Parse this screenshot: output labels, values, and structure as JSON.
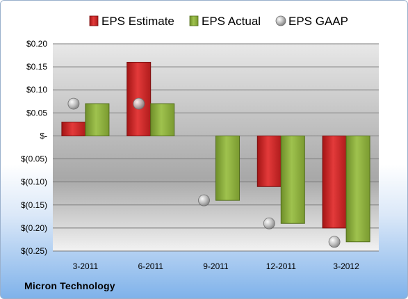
{
  "company_label": "Micron Technology",
  "chart_data": {
    "type": "bar",
    "categories": [
      "3-2011",
      "6-2011",
      "9-2011",
      "12-2011",
      "3-2012"
    ],
    "series": [
      {
        "name": "EPS Estimate",
        "kind": "bar",
        "color": "#d42a2a",
        "values": [
          0.03,
          0.16,
          null,
          -0.11,
          -0.2
        ]
      },
      {
        "name": "EPS Actual",
        "kind": "bar",
        "color": "#8fb23e",
        "values": [
          0.07,
          0.07,
          -0.14,
          -0.19,
          -0.23
        ]
      },
      {
        "name": "EPS GAAP",
        "kind": "marker",
        "color": "#b0b0b0",
        "values": [
          0.07,
          0.07,
          -0.14,
          -0.19,
          -0.23
        ]
      }
    ],
    "ylim": [
      -0.25,
      0.2
    ],
    "yticks": [
      0.2,
      0.15,
      0.1,
      0.05,
      0,
      -0.05,
      -0.1,
      -0.15,
      -0.2,
      -0.25
    ],
    "ytick_labels": [
      "$0.20",
      "$0.15",
      "$0.10",
      "$0.05",
      "$-",
      "$(0.05)",
      "$(0.10)",
      "$(0.15)",
      "$(0.20)",
      "$(0.25)"
    ],
    "legend_position": "top",
    "grid": true
  }
}
